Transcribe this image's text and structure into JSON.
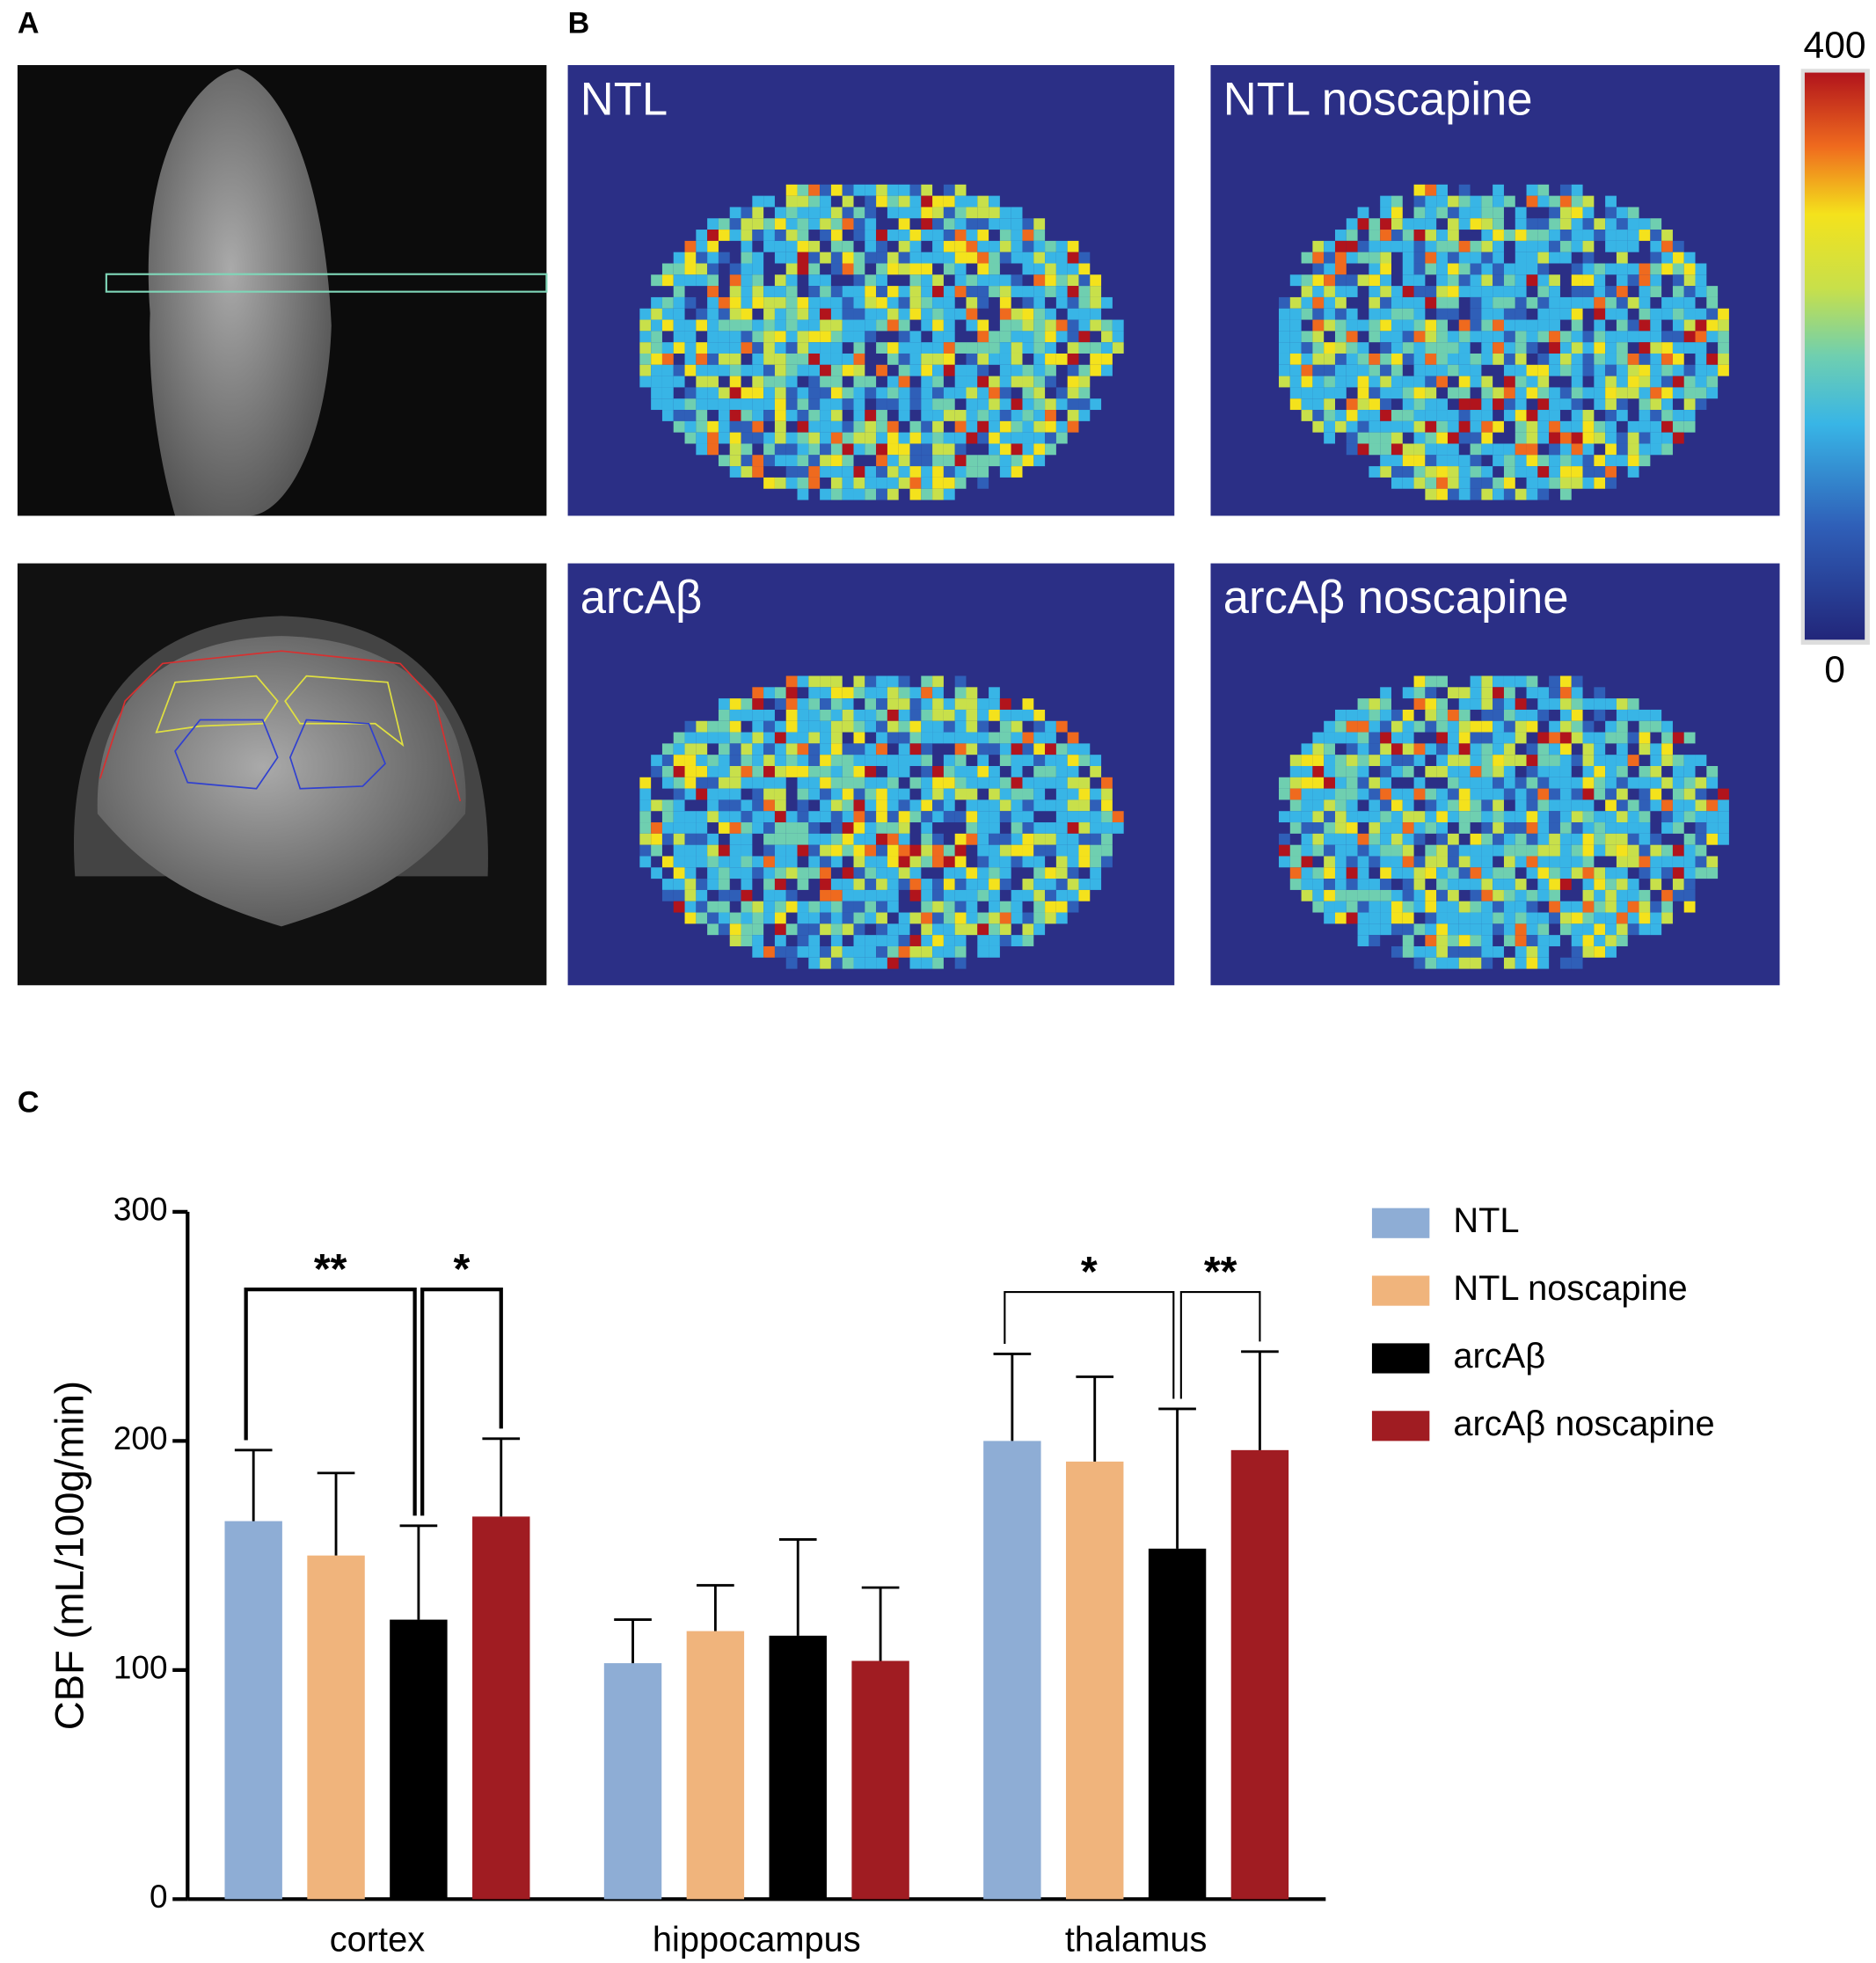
{
  "panels": {
    "a": "A",
    "b": "B",
    "c": "C"
  },
  "maps": {
    "titles": [
      "NTL",
      "NTL noscapine",
      "arcAβ",
      "arcAβ noscapine"
    ]
  },
  "colorbar": {
    "lim": [
      0,
      400
    ],
    "ticks": [
      0,
      400
    ]
  },
  "chart_data": {
    "type": "bar",
    "ylabel": "CBF (mL/100g/min)",
    "categories": [
      "cortex",
      "hippocampus",
      "thalamus"
    ],
    "series": [
      {
        "name": "NTL",
        "color": "#8eadd5",
        "values": [
          165,
          103,
          200
        ],
        "errors": [
          31,
          19,
          38
        ]
      },
      {
        "name": "NTL noscapine",
        "color": "#f0b47c",
        "values": [
          150,
          117,
          191
        ],
        "errors": [
          36,
          20,
          37
        ]
      },
      {
        "name": "arcAβ",
        "color": "#000000",
        "values": [
          122,
          115,
          153
        ],
        "errors": [
          41,
          42,
          61
        ]
      },
      {
        "name": "arcAβ noscapine",
        "color": "#a01c22",
        "values": [
          167,
          104,
          196
        ],
        "errors": [
          34,
          32,
          43
        ]
      }
    ],
    "annotations": [
      "**",
      "*",
      "*",
      "**"
    ],
    "ylim": [
      0,
      300
    ],
    "yticks": [
      0,
      100,
      200,
      300
    ],
    "grid": false,
    "legend": "right"
  }
}
